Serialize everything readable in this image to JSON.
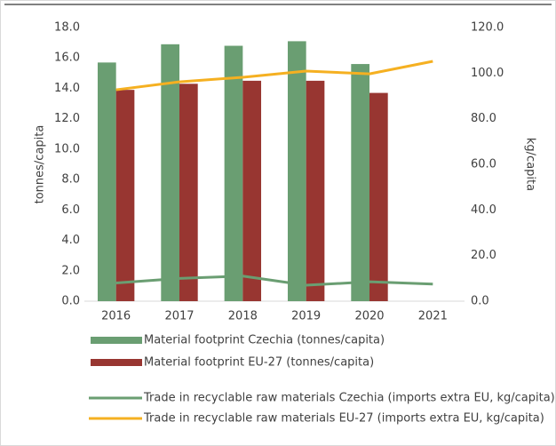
{
  "chart_data": {
    "type": "bar-line",
    "categories": [
      "2016",
      "2017",
      "2018",
      "2019",
      "2020",
      "2021"
    ],
    "ylabel": "tonnes/capita",
    "y2label": "kg/capita",
    "ylim": [
      0,
      18
    ],
    "yticks": [
      {
        "value": 0,
        "label": "0.0"
      },
      {
        "value": 2,
        "label": "2.0"
      },
      {
        "value": 4,
        "label": "4.0"
      },
      {
        "value": 6,
        "label": "6.0"
      },
      {
        "value": 8,
        "label": "8.0"
      },
      {
        "value": 10,
        "label": "10.0"
      },
      {
        "value": 12,
        "label": "12.0"
      },
      {
        "value": 14,
        "label": "14.0"
      },
      {
        "value": 16,
        "label": "16.0"
      },
      {
        "value": 18,
        "label": "18.0"
      }
    ],
    "y2lim": [
      0,
      120
    ],
    "y2ticks": [
      {
        "value": 0,
        "label": "0.0"
      },
      {
        "value": 20,
        "label": "20.0"
      },
      {
        "value": 40,
        "label": "40.0"
      },
      {
        "value": 60,
        "label": "60.0"
      },
      {
        "value": 80,
        "label": "80.0"
      },
      {
        "value": 100,
        "label": "100.0"
      },
      {
        "value": 120,
        "label": "120.0"
      }
    ],
    "series": [
      {
        "name": "Material footprint Czechia (tonnes/capita)",
        "type": "bar",
        "color": "#6a9e72",
        "values": [
          15.7,
          16.9,
          16.8,
          17.1,
          15.6,
          null
        ]
      },
      {
        "name": "Material footprint EU-27 (tonnes/capita)",
        "type": "bar",
        "color": "#983631",
        "values": [
          13.9,
          14.3,
          14.5,
          14.5,
          13.7,
          null
        ]
      },
      {
        "name": "Trade in recyclable raw materials Czechia (imports extra EU, kg/capita)",
        "type": "line",
        "axis": "y2",
        "color": "#6a9e72",
        "values": [
          8,
          10,
          11,
          7,
          8.5,
          7.5
        ]
      },
      {
        "name": "Trade in recyclable raw materials EU-27 (imports extra EU, kg/capita)",
        "type": "line",
        "axis": "y2",
        "color": "#f5b021",
        "values": [
          92.7,
          96.2,
          98.2,
          100.9,
          99.7,
          105.2
        ]
      }
    ]
  }
}
